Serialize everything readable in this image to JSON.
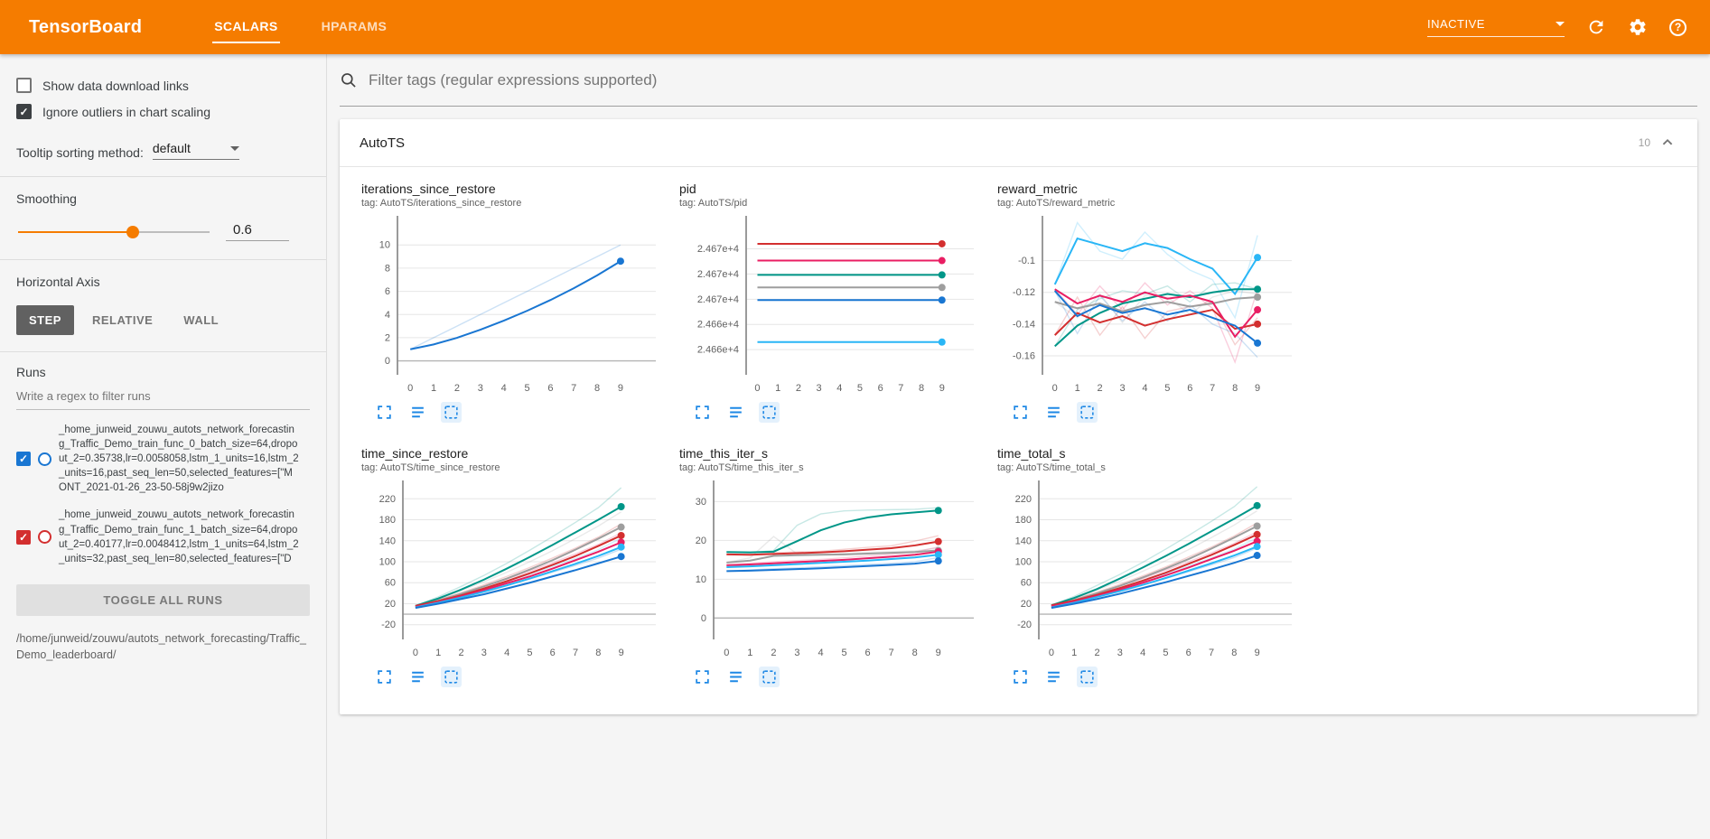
{
  "header": {
    "logo": "TensorBoard",
    "tabs": [
      {
        "label": "SCALARS"
      },
      {
        "label": "HPARAMS"
      }
    ],
    "status_dropdown": "INACTIVE"
  },
  "sidebar": {
    "show_download": {
      "label": "Show data download links",
      "checked": false
    },
    "ignore_outliers": {
      "label": "Ignore outliers in chart scaling",
      "checked": true
    },
    "tooltip_sort": {
      "label": "Tooltip sorting method:",
      "value": "default"
    },
    "smoothing": {
      "label": "Smoothing",
      "value": "0.6",
      "percent": "60%"
    },
    "haxis": {
      "label": "Horizontal Axis",
      "options": [
        "STEP",
        "RELATIVE",
        "WALL"
      ],
      "selected": "STEP"
    },
    "runs": {
      "label": "Runs",
      "filter_placeholder": "Write a regex to filter runs",
      "items": [
        {
          "checked": true,
          "color": "#1976d2",
          "name": "_home_junweid_zouwu_autots_network_forecasting_Traffic_Demo_train_func_0_batch_size=64,dropout_2=0.35738,lr=0.0058058,lstm_1_units=16,lstm_2_units=16,past_seq_len=50,selected_features=[\"MONT_2021-01-26_23-50-58j9w2jizo"
        },
        {
          "checked": true,
          "color": "#d32f2f",
          "name": "_home_junweid_zouwu_autots_network_forecasting_Traffic_Demo_train_func_1_batch_size=64,dropout_2=0.40177,lr=0.0048412,lstm_1_units=64,lstm_2_units=32,past_seq_len=80,selected_features=[\"D"
        }
      ],
      "toggle_all_label": "TOGGLE ALL RUNS",
      "base_path": "/home/junweid/zouwu/autots_network_forecasting/Traffic_Demo_leaderboard/"
    }
  },
  "main": {
    "filter_placeholder": "Filter tags (regular expressions supported)",
    "section": {
      "title": "AutoTS",
      "count": "10"
    }
  },
  "chart_data": [
    {
      "type": "line",
      "title": "iterations_since_restore",
      "tag": "tag: AutoTS/iterations_since_restore",
      "x": [
        0,
        1,
        2,
        3,
        4,
        5,
        6,
        7,
        8,
        9
      ],
      "ml": 40,
      "ylim": [
        -1.2,
        12.2
      ],
      "yticks": [
        {
          "v": 0,
          "label": "0"
        },
        {
          "v": 2,
          "label": "2"
        },
        {
          "v": 4,
          "label": "4"
        },
        {
          "v": 6,
          "label": "6"
        },
        {
          "v": 8,
          "label": "8"
        },
        {
          "v": 10,
          "label": "10"
        }
      ],
      "series": [
        {
          "color": "#1976d2",
          "values": [
            1,
            1.42,
            1.99,
            2.69,
            3.47,
            4.32,
            5.25,
            6.27,
            7.38,
            8.6
          ],
          "raw": [
            1,
            2,
            3,
            4,
            5,
            6,
            7,
            8,
            9,
            10
          ]
        }
      ]
    },
    {
      "type": "line",
      "title": "pid",
      "tag": "tag: AutoTS/pid",
      "x": [
        0,
        1,
        2,
        3,
        4,
        5,
        6,
        7,
        8,
        9
      ],
      "ml": 74,
      "ylim": [
        24658,
        24676.5
      ],
      "yticks": [
        {
          "v": 24661,
          "label": "2.466e+4"
        },
        {
          "v": 24664,
          "label": "2.466e+4"
        },
        {
          "v": 24667,
          "label": "2.467e+4"
        },
        {
          "v": 24670,
          "label": "2.467e+4"
        },
        {
          "v": 24673,
          "label": "2.467e+4"
        }
      ],
      "series": [
        {
          "color": "#d32f2f",
          "values": 24673.6
        },
        {
          "color": "#e91e63",
          "values": 24671.6
        },
        {
          "color": "#009688",
          "values": 24669.9
        },
        {
          "color": "#9e9e9e",
          "values": 24668.4
        },
        {
          "color": "#1976d2",
          "values": 24666.9
        },
        {
          "color": "#29b6f6",
          "values": 24661.9
        }
      ]
    },
    {
      "type": "line",
      "title": "reward_metric",
      "tag": "tag: AutoTS/reward_metric",
      "x": [
        0,
        1,
        2,
        3,
        4,
        5,
        6,
        7,
        8,
        9
      ],
      "ml": 50,
      "ylim": [
        -0.172,
        -0.074
      ],
      "yticks": [
        {
          "v": -0.1,
          "label": "-0.1"
        },
        {
          "v": -0.12,
          "label": "-0.12"
        },
        {
          "v": -0.14,
          "label": "-0.14"
        },
        {
          "v": -0.16,
          "label": "-0.16"
        }
      ],
      "series": [
        {
          "color": "#29b6f6",
          "values": [
            -0.115,
            -0.086,
            -0.09,
            -0.094,
            -0.089,
            -0.092,
            -0.099,
            -0.105,
            -0.121,
            -0.098
          ],
          "raw": [
            -0.115,
            -0.076,
            -0.094,
            -0.099,
            -0.082,
            -0.096,
            -0.106,
            -0.112,
            -0.136,
            -0.084
          ]
        },
        {
          "color": "#009688",
          "values": [
            -0.154,
            -0.141,
            -0.133,
            -0.127,
            -0.124,
            -0.121,
            -0.123,
            -0.12,
            -0.118,
            -0.118
          ],
          "raw": [
            -0.154,
            -0.131,
            -0.124,
            -0.119,
            -0.121,
            -0.116,
            -0.126,
            -0.115,
            -0.114,
            -0.118
          ]
        },
        {
          "color": "#9e9e9e",
          "values": [
            -0.126,
            -0.13,
            -0.127,
            -0.132,
            -0.128,
            -0.126,
            -0.129,
            -0.127,
            -0.124,
            -0.123
          ],
          "raw": [
            -0.126,
            -0.136,
            -0.121,
            -0.139,
            -0.122,
            -0.123,
            -0.134,
            -0.123,
            -0.119,
            -0.121
          ]
        },
        {
          "color": "#d32f2f",
          "values": [
            -0.147,
            -0.133,
            -0.139,
            -0.135,
            -0.141,
            -0.137,
            -0.134,
            -0.131,
            -0.143,
            -0.14
          ],
          "raw": [
            -0.147,
            -0.123,
            -0.147,
            -0.129,
            -0.149,
            -0.132,
            -0.129,
            -0.126,
            -0.153,
            -0.136
          ]
        },
        {
          "color": "#e91e63",
          "values": [
            -0.118,
            -0.127,
            -0.122,
            -0.126,
            -0.12,
            -0.124,
            -0.122,
            -0.126,
            -0.148,
            -0.131
          ],
          "raw": [
            -0.118,
            -0.134,
            -0.116,
            -0.131,
            -0.114,
            -0.128,
            -0.119,
            -0.13,
            -0.164,
            -0.118
          ]
        },
        {
          "color": "#1976d2",
          "values": [
            -0.119,
            -0.135,
            -0.128,
            -0.133,
            -0.13,
            -0.134,
            -0.131,
            -0.136,
            -0.141,
            -0.152
          ],
          "raw": [
            -0.119,
            -0.146,
            -0.122,
            -0.138,
            -0.126,
            -0.138,
            -0.128,
            -0.14,
            -0.146,
            -0.161
          ]
        }
      ]
    },
    {
      "type": "line",
      "title": "time_since_restore",
      "tag": "tag: AutoTS/time_since_restore",
      "x": [
        0,
        1,
        2,
        3,
        4,
        5,
        6,
        7,
        8,
        9
      ],
      "ml": 46,
      "ylim": [
        -48,
        248
      ],
      "yticks": [
        {
          "v": -20,
          "label": "-20"
        },
        {
          "v": 20,
          "label": "20"
        },
        {
          "v": 60,
          "label": "60"
        },
        {
          "v": 100,
          "label": "100"
        },
        {
          "v": 140,
          "label": "140"
        },
        {
          "v": 180,
          "label": "180"
        },
        {
          "v": 220,
          "label": "220"
        }
      ],
      "series": [
        {
          "color": "#009688",
          "values": [
            16,
            30,
            47,
            66,
            87,
            109,
            132,
            156,
            180,
            205
          ],
          "raw": [
            16,
            33,
            53,
            74,
            97,
            122,
            148,
            175,
            203,
            241
          ]
        },
        {
          "color": "#9e9e9e",
          "values": [
            15,
            26,
            39,
            53,
            68,
            85,
            103,
            123,
            144,
            166
          ],
          "raw": [
            15,
            29,
            45,
            62,
            80,
            100,
            121,
            144,
            168,
            195
          ]
        },
        {
          "color": "#d32f2f",
          "values": [
            16,
            25,
            36,
            49,
            63,
            78,
            94,
            111,
            130,
            150
          ],
          "raw": [
            16,
            28,
            41,
            56,
            72,
            89,
            107,
            126,
            147,
            172
          ]
        },
        {
          "color": "#e91e63",
          "values": [
            14,
            23,
            34,
            46,
            59,
            72,
            87,
            103,
            119,
            137
          ],
          "raw": [
            14,
            26,
            39,
            53,
            67,
            82,
            98,
            115,
            133,
            155
          ]
        },
        {
          "color": "#29b6f6",
          "values": [
            13,
            22,
            32,
            43,
            55,
            68,
            82,
            96,
            111,
            128
          ],
          "raw": [
            13,
            24,
            36,
            48,
            62,
            76,
            91,
            106,
            123,
            145
          ]
        },
        {
          "color": "#1976d2",
          "values": [
            12,
            20,
            29,
            38,
            49,
            60,
            72,
            84,
            97,
            110
          ],
          "raw": [
            12,
            22,
            32,
            43,
            55,
            67,
            80,
            93,
            107,
            124
          ]
        }
      ]
    },
    {
      "type": "line",
      "title": "time_this_iter_s",
      "tag": "tag: AutoTS/time_this_iter_s",
      "x": [
        0,
        1,
        2,
        3,
        4,
        5,
        6,
        7,
        8,
        9
      ],
      "ml": 38,
      "ylim": [
        -5.5,
        34.5
      ],
      "yticks": [
        {
          "v": 0,
          "label": "0"
        },
        {
          "v": 10,
          "label": "10"
        },
        {
          "v": 20,
          "label": "20"
        },
        {
          "v": 30,
          "label": "30"
        }
      ],
      "series": [
        {
          "color": "#009688",
          "values": [
            17,
            16.9,
            17.1,
            19.8,
            22.6,
            24.6,
            25.9,
            26.7,
            27.2,
            27.7
          ],
          "raw": [
            17,
            16.8,
            17.4,
            23.9,
            26.8,
            27.6,
            27.8,
            27.9,
            28,
            28.4
          ]
        },
        {
          "color": "#d32f2f",
          "values": [
            16.4,
            16.3,
            16.5,
            16.7,
            16.9,
            17.2,
            17.6,
            18,
            18.7,
            19.7
          ],
          "raw": [
            16.4,
            16.2,
            16.8,
            17,
            17.2,
            17.7,
            18.2,
            18.6,
            19.8,
            21.2
          ]
        },
        {
          "color": "#9e9e9e",
          "values": [
            14.3,
            14.8,
            16,
            16.2,
            16.3,
            16.4,
            16.6,
            16.8,
            17,
            17.4
          ],
          "raw": [
            14.3,
            15.5,
            21,
            16.5,
            16.4,
            16.6,
            16.9,
            17.1,
            17.3,
            18
          ]
        },
        {
          "color": "#e91e63",
          "values": [
            13.6,
            13.8,
            14.1,
            14.4,
            14.7,
            15,
            15.4,
            15.8,
            16.3,
            17.1
          ],
          "raw": [
            13.6,
            14.1,
            14.5,
            14.8,
            15.1,
            15.5,
            16,
            16.4,
            17,
            18.3
          ]
        },
        {
          "color": "#29b6f6",
          "values": [
            13.1,
            13.3,
            13.6,
            13.9,
            14.2,
            14.5,
            14.8,
            15.2,
            15.6,
            16.3
          ],
          "raw": [
            13.1,
            13.6,
            14,
            14.3,
            14.6,
            14.9,
            15.3,
            15.7,
            16.2,
            17.3
          ]
        },
        {
          "color": "#1976d2",
          "values": [
            12.1,
            12.2,
            12.4,
            12.6,
            12.8,
            13.1,
            13.4,
            13.7,
            14,
            14.7
          ],
          "raw": [
            12.1,
            12.4,
            12.7,
            12.9,
            13.2,
            13.5,
            13.8,
            14.1,
            14.5,
            15.6
          ]
        }
      ]
    },
    {
      "type": "line",
      "title": "time_total_s",
      "tag": "tag: AutoTS/time_total_s",
      "x": [
        0,
        1,
        2,
        3,
        4,
        5,
        6,
        7,
        8,
        9
      ],
      "ml": 46,
      "ylim": [
        -48,
        248
      ],
      "yticks": [
        {
          "v": -20,
          "label": "-20"
        },
        {
          "v": 20,
          "label": "20"
        },
        {
          "v": 60,
          "label": "60"
        },
        {
          "v": 100,
          "label": "100"
        },
        {
          "v": 140,
          "label": "140"
        },
        {
          "v": 180,
          "label": "180"
        },
        {
          "v": 220,
          "label": "220"
        }
      ],
      "series": [
        {
          "color": "#009688",
          "values": [
            17,
            31,
            48,
            68,
            89,
            111,
            134,
            158,
            182,
            207
          ],
          "raw": [
            17,
            34,
            55,
            76,
            99,
            124,
            150,
            177,
            205,
            243
          ]
        },
        {
          "color": "#9e9e9e",
          "values": [
            15,
            27,
            40,
            54,
            70,
            87,
            105,
            125,
            146,
            168
          ],
          "raw": [
            15,
            30,
            46,
            63,
            82,
            102,
            123,
            146,
            170,
            197
          ]
        },
        {
          "color": "#d32f2f",
          "values": [
            17,
            26,
            37,
            50,
            64,
            79,
            96,
            113,
            132,
            152
          ],
          "raw": [
            17,
            29,
            42,
            57,
            73,
            90,
            109,
            128,
            149,
            174
          ]
        },
        {
          "color": "#e91e63",
          "values": [
            15,
            24,
            35,
            47,
            60,
            74,
            89,
            105,
            121,
            139
          ],
          "raw": [
            15,
            27,
            40,
            54,
            68,
            84,
            100,
            117,
            135,
            157
          ]
        },
        {
          "color": "#29b6f6",
          "values": [
            13,
            22,
            33,
            44,
            56,
            69,
            83,
            97,
            112,
            129
          ],
          "raw": [
            13,
            25,
            37,
            49,
            63,
            77,
            92,
            107,
            124,
            146
          ]
        },
        {
          "color": "#1976d2",
          "values": [
            12,
            20,
            29,
            39,
            50,
            61,
            73,
            85,
            98,
            112
          ],
          "raw": [
            12,
            22,
            33,
            44,
            56,
            68,
            81,
            94,
            108,
            126
          ]
        }
      ]
    }
  ]
}
